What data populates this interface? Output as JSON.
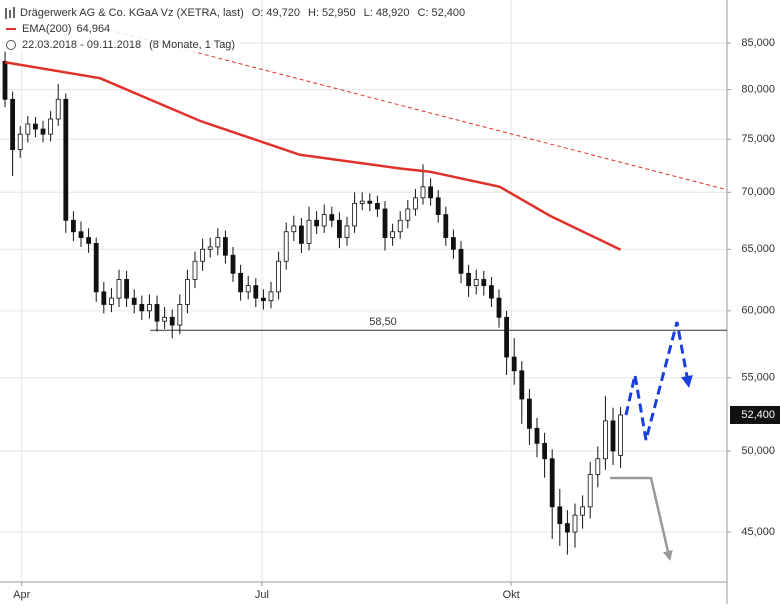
{
  "chart_data": {
    "type": "candlestick",
    "title": "Drägerwerk AG & Co. KGaA Vz (XETRA, last)",
    "quote": [
      {
        "name": "O:",
        "label": "49,720"
      },
      {
        "name": "H:",
        "label": "52,950"
      },
      {
        "name": "L:",
        "label": "48,920"
      },
      {
        "name": "C:",
        "label": "52,400"
      }
    ],
    "period": "22.03.2018 - 09.11.2018",
    "period_length": "(8 Monate, 1 Tag)",
    "log_scale": true,
    "grid": true,
    "xlim": [
      -0.66,
      95
    ],
    "xticks": [
      {
        "value": 2.2,
        "label": "Apr"
      },
      {
        "value": 33.8,
        "label": "Jul"
      },
      {
        "value": 66.6,
        "label": "Okt"
      }
    ],
    "ylim": [
      42170,
      89890
    ],
    "yticks": [
      {
        "value": 45000,
        "label": "45,000"
      },
      {
        "value": 50000,
        "label": "50,000"
      },
      {
        "value": 55000,
        "label": "55,000"
      },
      {
        "value": 60000,
        "label": "60,000"
      },
      {
        "value": 65000,
        "label": "65,000"
      },
      {
        "value": 70000,
        "label": "70,000"
      },
      {
        "value": 75000,
        "label": "75,000"
      },
      {
        "value": 80000,
        "label": "80,000"
      },
      {
        "value": 85000,
        "label": "85,000"
      }
    ],
    "candles": {
      "open": [
        83000,
        79000,
        74000,
        75500,
        76500,
        76000,
        75500,
        77000,
        79000,
        67500,
        66500,
        66000,
        65500,
        61500,
        60500,
        61000,
        62500,
        61000,
        60500,
        60000,
        60500,
        59200,
        59500,
        58900,
        60500,
        62500,
        64000,
        65000,
        65200,
        66000,
        64500,
        63000,
        61500,
        62000,
        61000,
        60800,
        61500,
        64000,
        66500,
        67000,
        65500,
        67500,
        67000,
        68000,
        67500,
        66000,
        67000,
        69000,
        69200,
        69000,
        68500,
        66000,
        66500,
        67500,
        68500,
        69500,
        70500,
        69500,
        68000,
        66000,
        65000,
        63000,
        62000,
        62500,
        62000,
        61000,
        59500,
        56500,
        55500,
        53500,
        51500,
        50500,
        49500,
        46500,
        45500,
        45000,
        46000,
        46500,
        48500,
        49500,
        52000,
        49720
      ],
      "high": [
        84200,
        79800,
        76300,
        77300,
        77200,
        76800,
        77800,
        80600,
        79600,
        68300,
        67400,
        66800,
        66000,
        62300,
        61800,
        63300,
        63200,
        61700,
        61200,
        61300,
        61200,
        60300,
        60100,
        61300,
        63300,
        64800,
        65900,
        66000,
        66800,
        66600,
        65200,
        63700,
        62800,
        62600,
        61700,
        62300,
        64800,
        67300,
        67900,
        67700,
        68700,
        68300,
        68900,
        68700,
        68200,
        67800,
        70000,
        70000,
        69900,
        69700,
        69200,
        67200,
        68300,
        69300,
        70300,
        72600,
        71300,
        70200,
        68700,
        66700,
        65700,
        63700,
        63300,
        63200,
        62700,
        61700,
        60000,
        57900,
        56200,
        54200,
        52200,
        51200,
        50100,
        47600,
        46300,
        46700,
        47200,
        49300,
        50300,
        53700,
        52900,
        52950
      ],
      "low": [
        78200,
        71500,
        73200,
        74700,
        75200,
        74700,
        74800,
        76300,
        66400,
        65700,
        65200,
        64700,
        60700,
        59800,
        59900,
        60300,
        60300,
        59800,
        59300,
        59400,
        58400,
        58600,
        57900,
        58200,
        59800,
        61800,
        63200,
        64300,
        64500,
        63800,
        62300,
        60800,
        60900,
        60300,
        60100,
        60200,
        60900,
        63300,
        65700,
        64700,
        64900,
        66300,
        66400,
        66900,
        65100,
        65300,
        66400,
        68400,
        68300,
        67800,
        64900,
        65300,
        65900,
        66800,
        67900,
        68900,
        68800,
        67300,
        65300,
        64200,
        62200,
        61100,
        61300,
        61200,
        60300,
        58700,
        55200,
        54500,
        51800,
        50400,
        49600,
        48300,
        44600,
        44200,
        43700,
        44100,
        45200,
        45800,
        47700,
        48800,
        49100,
        48920
      ],
      "close": [
        79000,
        74000,
        75500,
        76500,
        76000,
        75500,
        77000,
        79000,
        67500,
        66500,
        66000,
        65500,
        61500,
        60500,
        61000,
        62500,
        61000,
        60500,
        60000,
        60500,
        59200,
        59500,
        58900,
        60500,
        62500,
        64000,
        65000,
        65200,
        66000,
        64500,
        63000,
        61500,
        62000,
        61000,
        60800,
        61500,
        64000,
        66500,
        67000,
        65500,
        67500,
        67000,
        68000,
        67500,
        66000,
        67000,
        69000,
        69200,
        69000,
        68500,
        66000,
        66500,
        67500,
        68500,
        69500,
        70500,
        69500,
        68000,
        66000,
        65000,
        63000,
        62000,
        62500,
        62000,
        61000,
        59500,
        56500,
        55500,
        53500,
        51500,
        50500,
        49500,
        46500,
        45500,
        45000,
        46000,
        46500,
        48500,
        49500,
        52000,
        50000,
        52400
      ]
    },
    "series": [
      {
        "name": "EMA(200)",
        "color": "#e0322a",
        "x": [
          0,
          12.5,
          25.7,
          38.8,
          52,
          55.9,
          65.1,
          71.7,
          81
        ],
        "values": [
          82900,
          81200,
          76800,
          73500,
          72200,
          71900,
          70500,
          67900,
          64964
        ],
        "value_label": "64,964"
      }
    ],
    "trendline": {
      "color": "#e0322a",
      "x": [
        13.8,
        95
      ],
      "values": [
        86450,
        70230
      ]
    },
    "support": {
      "value": 58500,
      "label": "58,50",
      "x": [
        19.1,
        95
      ]
    },
    "last_price": {
      "value": 52400,
      "label": "52,400"
    }
  }
}
